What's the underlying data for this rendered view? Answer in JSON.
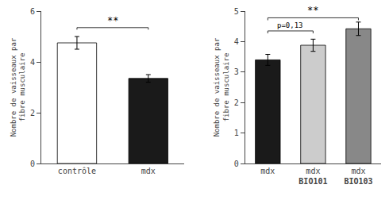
{
  "chart_data": [
    {
      "type": "bar",
      "categories": [
        "contrôle",
        "mdx"
      ],
      "values": [
        4.75,
        3.35
      ],
      "errors": [
        0.25,
        0.15
      ],
      "colors": [
        "#ffffff",
        "#1a1a1a"
      ],
      "ylabel": "Nombre de vaisseaux par\nfibre musculaire",
      "ylim": [
        0,
        6
      ],
      "yticks": [
        0,
        2,
        4,
        6
      ],
      "grid": false,
      "annotations": [
        {
          "text": "**",
          "from": 0,
          "to": 1,
          "y": 5.35
        }
      ]
    },
    {
      "type": "bar",
      "categories": [
        "mdx",
        "mdx\nBIO101",
        "mdx\nBIO103"
      ],
      "values": [
        3.4,
        3.88,
        4.42
      ],
      "errors": [
        0.18,
        0.2,
        0.22
      ],
      "colors": [
        "#1a1a1a",
        "#cccccc",
        "#888888"
      ],
      "ylabel": "Nombre de vaisseaux par\nfibre musculaire",
      "ylim": [
        0,
        5
      ],
      "yticks": [
        0,
        1,
        2,
        3,
        4,
        5
      ],
      "grid": false,
      "annotations": [
        {
          "text": "**",
          "from": 0,
          "to": 2,
          "y": 4.78
        },
        {
          "text": "p=0,13",
          "from": 0,
          "to": 1,
          "y": 4.35
        }
      ]
    }
  ]
}
